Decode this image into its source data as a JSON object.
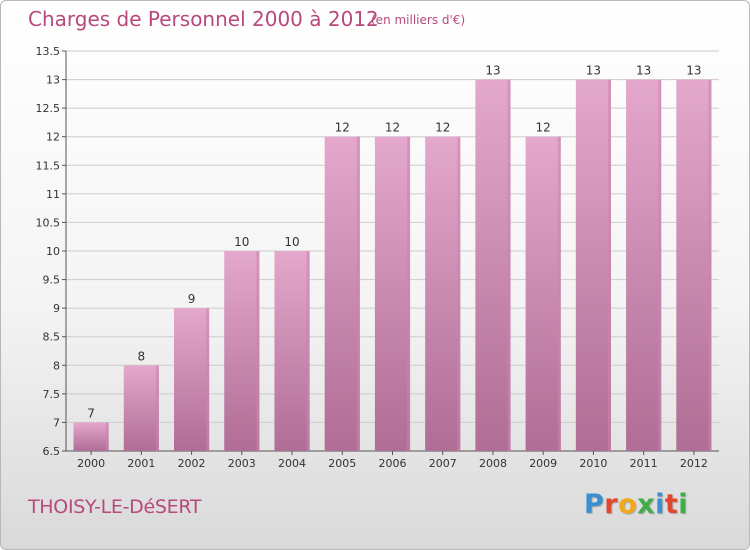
{
  "header": {
    "title": "Charges de Personnel 2000 à 2012",
    "unit_note": "(en milliers d'€)"
  },
  "footer": {
    "city": "THOISY-LE-DéSERT",
    "logo_text": "Proxiti",
    "logo_colors": [
      "#3a8fd0",
      "#e0482d",
      "#f2a81d",
      "#3fae49",
      "#3a8fd0",
      "#e0482d",
      "#3fae49"
    ]
  },
  "colors": {
    "bar_top": "#e4a8cc",
    "bar_bottom": "#b06d95",
    "bar_side": "#c985ad",
    "grid": "#cccccc",
    "text": "#333333",
    "title": "#b7497c"
  },
  "chart_data": {
    "type": "bar",
    "categories": [
      "2000",
      "2001",
      "2002",
      "2003",
      "2004",
      "2005",
      "2006",
      "2007",
      "2008",
      "2009",
      "2010",
      "2011",
      "2012"
    ],
    "values": [
      7,
      8,
      9,
      10,
      10,
      12,
      12,
      12,
      13,
      12,
      13,
      13,
      13
    ],
    "value_labels": [
      "7",
      "8",
      "9",
      "10",
      "10",
      "12",
      "12",
      "12",
      "13",
      "12",
      "13",
      "13",
      "13"
    ],
    "ylim": [
      6.5,
      13.5
    ],
    "yticks": [
      6.5,
      7,
      7.5,
      8,
      8.5,
      9,
      9.5,
      10,
      10.5,
      11,
      11.5,
      12,
      12.5,
      13,
      13.5
    ],
    "ytick_labels": [
      "6.5",
      "7",
      "7.5",
      "8",
      "8.5",
      "9",
      "9.5",
      "10",
      "10.5",
      "11",
      "11.5",
      "12",
      "12.5",
      "13",
      "13.5"
    ],
    "grid": true,
    "xlabel": "",
    "ylabel": ""
  }
}
